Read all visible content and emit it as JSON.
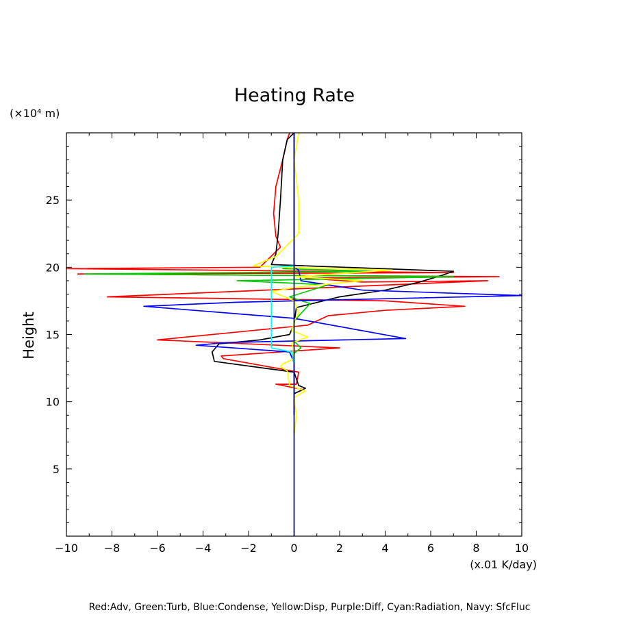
{
  "chart_data": {
    "type": "line",
    "title": "Heating Rate",
    "ylabel": "Height",
    "yunit": "(×10⁴ m)",
    "xunit": "(x.01 K/day)",
    "xlim": [
      -10,
      10
    ],
    "ylim": [
      0,
      30
    ],
    "xticks": [
      -10,
      -8,
      -6,
      -4,
      -2,
      0,
      2,
      4,
      6,
      8,
      10
    ],
    "xtick_labels": [
      "−10",
      "−8",
      "−6",
      "−4",
      "−2",
      "0",
      "2",
      "4",
      "6",
      "8",
      "10"
    ],
    "yticks": [
      5,
      10,
      15,
      20,
      25
    ],
    "ytick_labels": [
      "5",
      "10",
      "15",
      "20",
      "25"
    ],
    "grid": false,
    "legend_text": "Red:Adv, Green:Turb, Blue:Condense, Yellow:Disp, Purple:Diff, Cyan:Radiation, Navy: SfcFluc",
    "series": [
      {
        "color": "#ff0000",
        "points": [
          [
            0.0,
            9.0
          ],
          [
            0.0,
            10.6
          ],
          [
            0.4,
            10.9
          ],
          [
            -0.8,
            11.3
          ],
          [
            0.1,
            11.3
          ],
          [
            0.2,
            12.2
          ],
          [
            -3.1,
            13.2
          ],
          [
            -3.2,
            13.4
          ],
          [
            2.0,
            14.0
          ],
          [
            -6.0,
            14.6
          ],
          [
            0.6,
            15.7
          ],
          [
            1.5,
            16.4
          ],
          [
            4.0,
            16.8
          ],
          [
            7.5,
            17.1
          ],
          [
            4.0,
            17.5
          ],
          [
            -8.2,
            17.8
          ],
          [
            8.5,
            19.0
          ],
          [
            3.0,
            18.9
          ],
          [
            0.5,
            19.2
          ],
          [
            9.0,
            19.3
          ],
          [
            -9.5,
            19.5
          ],
          [
            7.0,
            19.6
          ],
          [
            -10.0,
            19.9
          ],
          [
            -1.5,
            20.0
          ],
          [
            -0.6,
            21.5
          ],
          [
            -0.8,
            22.3
          ],
          [
            -0.9,
            24.0
          ],
          [
            -0.8,
            26.0
          ],
          [
            -0.5,
            28.0
          ],
          [
            -0.3,
            29.5
          ],
          [
            -0.2,
            30.0
          ]
        ]
      },
      {
        "color": "#000000",
        "points": [
          [
            0.0,
            9.0
          ],
          [
            0.0,
            10.6
          ],
          [
            0.5,
            11.0
          ],
          [
            0.2,
            11.2
          ],
          [
            0.0,
            12.2
          ],
          [
            -3.5,
            13.0
          ],
          [
            -3.6,
            13.7
          ],
          [
            -3.3,
            14.3
          ],
          [
            -1.5,
            14.6
          ],
          [
            -0.2,
            15.0
          ],
          [
            0.0,
            15.8
          ],
          [
            0.1,
            17.0
          ],
          [
            2.0,
            17.8
          ],
          [
            4.0,
            18.3
          ],
          [
            5.5,
            18.9
          ],
          [
            6.5,
            19.4
          ],
          [
            7.0,
            19.7
          ],
          [
            -1.0,
            20.2
          ],
          [
            -0.8,
            21.0
          ],
          [
            -0.7,
            22.5
          ],
          [
            -0.6,
            25.0
          ],
          [
            -0.5,
            28.0
          ],
          [
            -0.3,
            29.5
          ],
          [
            0.0,
            30.0
          ]
        ]
      },
      {
        "color": "#00cc00",
        "points": [
          [
            0.0,
            13.6
          ],
          [
            0.3,
            14.0
          ],
          [
            0.0,
            14.5
          ],
          [
            0.0,
            16.0
          ],
          [
            0.7,
            17.3
          ],
          [
            -0.2,
            17.8
          ],
          [
            1.5,
            18.7
          ],
          [
            -2.5,
            19.0
          ],
          [
            7.0,
            19.3
          ],
          [
            -9.2,
            19.5
          ],
          [
            3.5,
            19.7
          ],
          [
            -0.5,
            19.9
          ],
          [
            0.0,
            20.1
          ]
        ]
      },
      {
        "color": "#0000ff",
        "points": [
          [
            0.0,
            9.0
          ],
          [
            0.0,
            12.9
          ],
          [
            -0.2,
            13.7
          ],
          [
            -4.3,
            14.2
          ],
          [
            -3.0,
            14.4
          ],
          [
            4.9,
            14.7
          ],
          [
            0.0,
            16.2
          ],
          [
            -6.6,
            17.1
          ],
          [
            -2.5,
            17.4
          ],
          [
            0.0,
            17.5
          ],
          [
            10.0,
            17.9
          ],
          [
            3.0,
            18.3
          ],
          [
            0.3,
            19.0
          ],
          [
            0.2,
            19.8
          ],
          [
            0.0,
            20.0
          ],
          [
            0.0,
            30.0
          ]
        ]
      },
      {
        "color": "#ffff00",
        "points": [
          [
            0.0,
            7.5
          ],
          [
            0.1,
            9.0
          ],
          [
            0.0,
            10.3
          ],
          [
            0.5,
            10.8
          ],
          [
            -0.2,
            11.2
          ],
          [
            -0.3,
            12.3
          ],
          [
            -0.6,
            12.6
          ],
          [
            -0.5,
            12.8
          ],
          [
            0.0,
            13.2
          ],
          [
            -0.1,
            14.4
          ],
          [
            0.6,
            14.8
          ],
          [
            -0.1,
            15.3
          ],
          [
            0.0,
            16.0
          ],
          [
            0.2,
            16.6
          ],
          [
            0.0,
            17.5
          ],
          [
            -1.0,
            18.2
          ],
          [
            0.0,
            18.5
          ],
          [
            3.0,
            19.0
          ],
          [
            0.0,
            19.3
          ],
          [
            4.3,
            19.8
          ],
          [
            -0.5,
            20.0
          ],
          [
            -1.8,
            20.1
          ],
          [
            -0.8,
            20.8
          ],
          [
            0.2,
            22.5
          ],
          [
            0.2,
            25.0
          ],
          [
            0.0,
            28.0
          ],
          [
            0.2,
            30.0
          ]
        ]
      },
      {
        "color": "#00ffff",
        "points": [
          [
            0.0,
            12.8
          ],
          [
            -0.1,
            13.7
          ],
          [
            -1.0,
            14.0
          ],
          [
            -1.0,
            20.0
          ],
          [
            0.0,
            20.1
          ]
        ]
      },
      {
        "color": "#000080",
        "points": [
          [
            0.0,
            0.0
          ],
          [
            0.0,
            30.0
          ]
        ]
      }
    ]
  }
}
